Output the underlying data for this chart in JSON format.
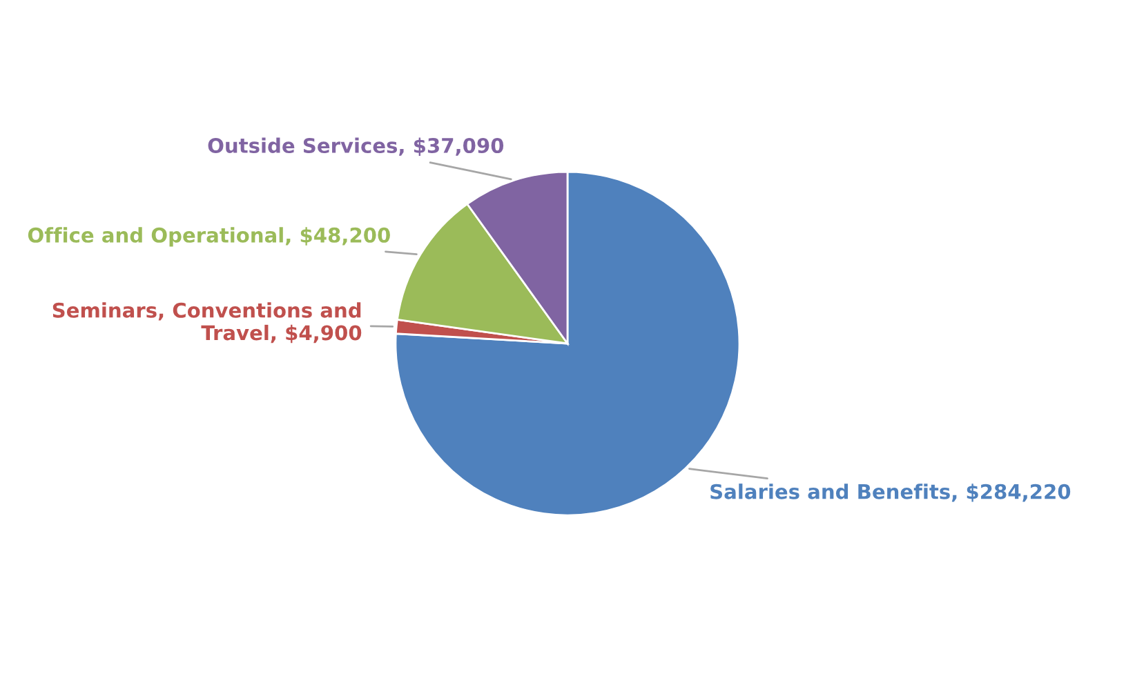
{
  "chart_data": {
    "type": "pie",
    "categories": [
      "Salaries and Benefits",
      "Seminars, Conventions and Travel",
      "Office and Operational",
      "Outside Services"
    ],
    "values": [
      284220,
      4900,
      48200,
      37090
    ],
    "value_labels": [
      "$284,220",
      "$4,900",
      "$48,200",
      "$37,090"
    ],
    "colors": [
      "#4f81bd",
      "#c0504d",
      "#9bbb59",
      "#8064a2"
    ],
    "legend": false
  }
}
